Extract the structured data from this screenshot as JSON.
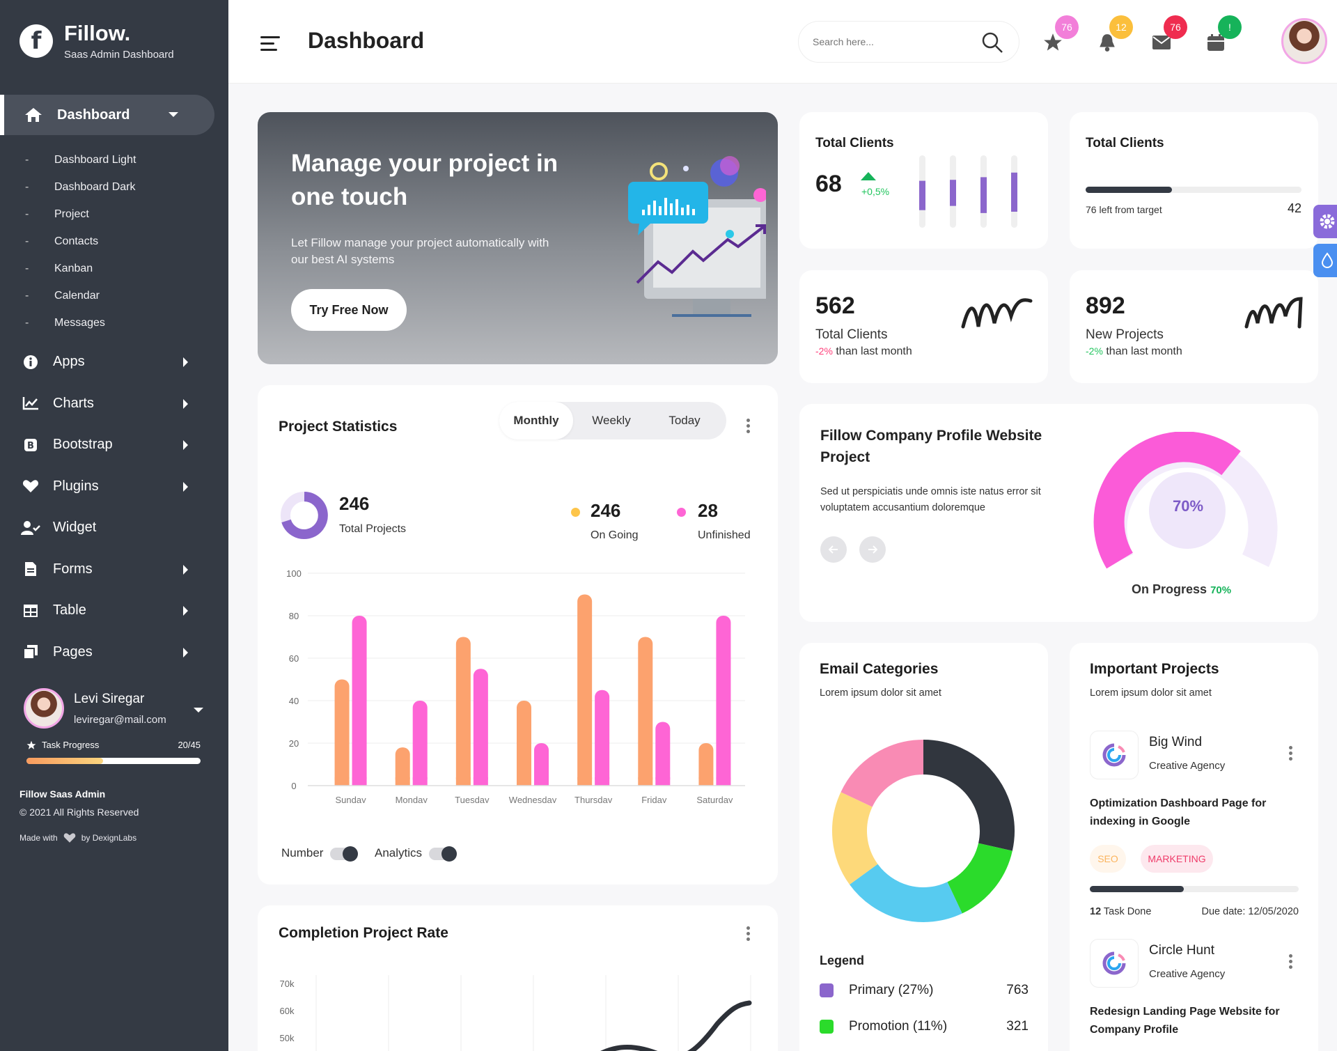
{
  "brand": {
    "logo_letter": "f",
    "name": "Fillow.",
    "subtitle": "Saas Admin Dashboard"
  },
  "nav": {
    "active": {
      "label": "Dashboard",
      "icon": "home-icon"
    },
    "subitems": [
      "Dashboard Light",
      "Dashboard Dark",
      "Project",
      "Contacts",
      "Kanban",
      "Calendar",
      "Messages"
    ],
    "menu": [
      {
        "label": "Apps",
        "icon": "info-icon"
      },
      {
        "label": "Charts",
        "icon": "chart-icon"
      },
      {
        "label": "Bootstrap",
        "icon": "bootstrap-icon"
      },
      {
        "label": "Plugins",
        "icon": "heart-icon"
      },
      {
        "label": "Widget",
        "icon": "user-check-icon"
      },
      {
        "label": "Forms",
        "icon": "file-icon"
      },
      {
        "label": "Table",
        "icon": "table-icon"
      },
      {
        "label": "Pages",
        "icon": "pages-icon"
      }
    ],
    "dash_char": "-"
  },
  "profile": {
    "name": "Levi Siregar",
    "email": "leviregar@mail.com",
    "task_label": "Task Progress",
    "task_value": "20/45",
    "task_progress": 0.44
  },
  "footer": {
    "line1": "Fillow Saas Admin",
    "line2": "© 2021 All Rights Reserved",
    "made_with": "Made with",
    "by": "by DexignLabs"
  },
  "header": {
    "title": "Dashboard",
    "search_placeholder": "Search here...",
    "badges": [
      {
        "icon": "star-icon",
        "count": "76",
        "color": "#f27fd9"
      },
      {
        "icon": "bell-icon",
        "count": "12",
        "color": "#fbbf3c"
      },
      {
        "icon": "mail-icon",
        "count": "76",
        "color": "#ef2c4f"
      },
      {
        "icon": "calendar-icon",
        "count": "!",
        "color": "#16b35a"
      }
    ]
  },
  "hero": {
    "title": "Manage your project in one touch",
    "text": "Let Fillow manage your project automatically with our best AI systems",
    "button": "Try Free Now"
  },
  "cards": {
    "total_clients_bars": {
      "title": "Total Clients",
      "value": "68",
      "change": "+0,5%",
      "bars": [
        0.45,
        0.4,
        0.55,
        0.6
      ]
    },
    "total_clients_target": {
      "title": "Total Clients",
      "note": "76 left from target",
      "value": "42",
      "progress": 0.4
    },
    "clients_562": {
      "value": "562",
      "label": "Total Clients",
      "change": "-2%",
      "suffix": "than last month"
    },
    "projects_892": {
      "value": "892",
      "label": "New Projects",
      "change": "-2%",
      "suffix": "than last month"
    }
  },
  "company": {
    "title": "Fillow Company Profile Website Project",
    "text": "Sed ut perspiciatis unde omnis iste natus error sit voluptatem accusantium doloremque",
    "gauge_value": "70%",
    "progress_label": "On Progress",
    "progress_value": "70%"
  },
  "project_stats": {
    "title": "Project Statistics",
    "tabs": [
      "Monthly",
      "Weekly",
      "Today"
    ],
    "total": {
      "value": "246",
      "label": "Total Projects"
    },
    "ongoing": {
      "value": "246",
      "label": "On Going"
    },
    "unfinished": {
      "value": "28",
      "label": "Unfinished"
    },
    "toggles": [
      "Number",
      "Analytics"
    ]
  },
  "chart_data": [
    {
      "type": "bar",
      "categories": [
        "Sunday",
        "Monday",
        "Tuesday",
        "Wednesday",
        "Thursday",
        "Friday",
        "Saturday"
      ],
      "series": [
        {
          "values": [
            50,
            18,
            70,
            40,
            90,
            70,
            20
          ],
          "color": "#fca26e"
        },
        {
          "values": [
            80,
            40,
            55,
            20,
            45,
            30,
            80
          ],
          "color": "#fe65d5"
        }
      ],
      "ylim": [
        0,
        100
      ],
      "yticks": [
        0,
        20,
        40,
        60,
        80,
        100
      ],
      "grid": true
    },
    {
      "type": "pie",
      "title": "Email Categories",
      "subtitle": "Lorem ipsum dolor sit amet",
      "slices": [
        {
          "label": "Primary (27%)",
          "value": 27,
          "color": "#8b66cc",
          "count": "763"
        },
        {
          "label": "Promotion (11%)",
          "value": 11,
          "color": "#2bdb2b",
          "count": "321"
        }
      ],
      "legend_title": "Legend"
    },
    {
      "type": "line",
      "title": "Completion Project Rate",
      "yticks": [
        "70k",
        "60k",
        "50k"
      ]
    }
  ],
  "donut_colors": [
    "#31363e",
    "#2bdb2b",
    "#57cbf0",
    "#fdd97a",
    "#f98bb4"
  ],
  "important": {
    "title": "Important Projects",
    "subtitle": "Lorem ipsum dolor sit amet",
    "projects": [
      {
        "name": "Big Wind",
        "agency": "Creative Agency",
        "desc": "Optimization Dashboard Page for indexing in Google",
        "tags": [
          "SEO",
          "MARKETING"
        ],
        "tasks_done": "12",
        "tasks_label": "Task Done",
        "due": "Due date: 12/05/2020",
        "progress": 0.45
      },
      {
        "name": "Circle Hunt",
        "agency": "Creative Agency",
        "desc": "Redesign Landing Page Website for Company Profile"
      }
    ]
  }
}
